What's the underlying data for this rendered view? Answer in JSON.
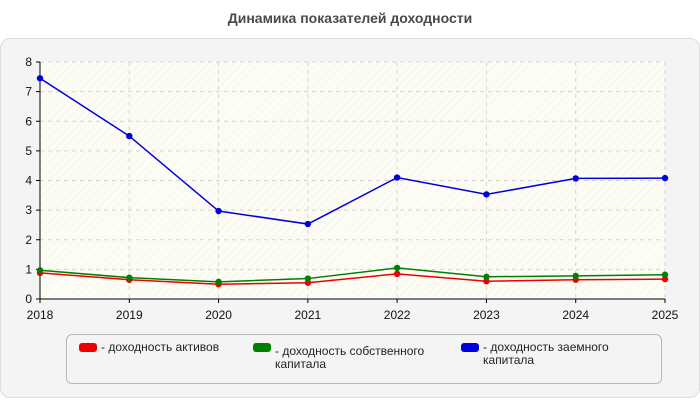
{
  "chart_data": {
    "type": "line",
    "title": "Динамика показателей доходности",
    "xlabel": "",
    "ylabel": "",
    "x": [
      "2018",
      "2019",
      "2020",
      "2021",
      "2022",
      "2023",
      "2024",
      "2025"
    ],
    "ylim": [
      0,
      8
    ],
    "yticks": [
      "0",
      "1",
      "2",
      "3",
      "4",
      "5",
      "6",
      "7",
      "8"
    ],
    "grid": true,
    "legend_position": "bottom",
    "series": [
      {
        "name": "- доходность активов",
        "color": "#ee0000",
        "values": [
          0.88,
          0.65,
          0.5,
          0.55,
          0.85,
          0.6,
          0.65,
          0.67
        ]
      },
      {
        "name": "- доходность собственного капитала",
        "color": "#008000",
        "values": [
          0.97,
          0.72,
          0.58,
          0.69,
          1.05,
          0.75,
          0.78,
          0.82
        ]
      },
      {
        "name": "- доходность заемного капитала",
        "color": "#0000dd",
        "values": [
          7.45,
          5.5,
          2.97,
          2.53,
          4.1,
          3.53,
          4.07,
          4.08
        ]
      }
    ]
  }
}
